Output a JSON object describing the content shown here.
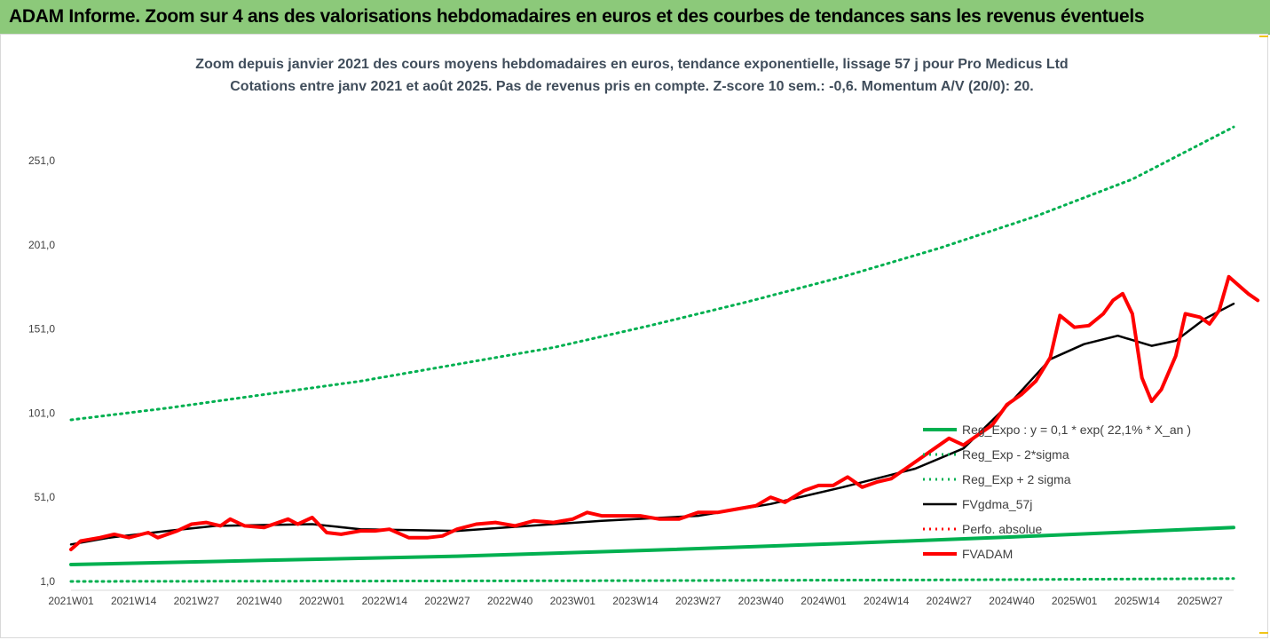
{
  "header": {
    "title": "ADAM Informe. Zoom sur 4 ans des valorisations hebdomadaires en euros et des courbes de tendances sans les revenus éventuels"
  },
  "chart_data": {
    "type": "line",
    "title_lines": [
      "Zoom depuis janvier 2021 des cours moyens hebdomadaires en euros, tendance exponentielle, lissage 57 j pour Pro Medicus Ltd",
      "Cotations entre janv 2021 et août 2025.  Pas de revenus pris en compte. Z-score 10 sem.: -0,6. Momentum A/V (20/0): 20."
    ],
    "xlabel": "",
    "ylabel": "",
    "ylim": [
      1,
      270
    ],
    "y_ticks": [
      "1,0",
      "51,0",
      "101,0",
      "151,0",
      "201,0",
      "251,0"
    ],
    "y_tick_values": [
      1,
      51,
      101,
      151,
      201,
      251
    ],
    "x_ticks": [
      "2021W01",
      "2021W14",
      "2021W27",
      "2021W40",
      "2022W01",
      "2022W14",
      "2022W27",
      "2022W40",
      "2023W01",
      "2023W14",
      "2023W27",
      "2023W40",
      "2024W01",
      "2024W14",
      "2024W27",
      "2024W40",
      "2025W01",
      "2025W14",
      "2025W27"
    ],
    "x_tick_weeks": [
      0,
      13,
      26,
      39,
      52,
      65,
      78,
      91,
      104,
      117,
      130,
      143,
      156,
      169,
      182,
      195,
      208,
      221,
      234
    ],
    "x_max_week": 241,
    "grid": false,
    "legend_position": "bottom-right",
    "series": [
      {
        "name": "Reg_Expo : y = 0,1 * exp( 22,1% *  X_an )",
        "color": "#00b050",
        "style": "solid",
        "points": [
          [
            0,
            11.0
          ],
          [
            40,
            13.5
          ],
          [
            80,
            16.0
          ],
          [
            120,
            19.5
          ],
          [
            160,
            23.5
          ],
          [
            200,
            28.0
          ],
          [
            241,
            33.0
          ]
        ]
      },
      {
        "name": "Reg_Exp - 2*sigma",
        "color": "#00b050",
        "style": "dotted",
        "points": [
          [
            0,
            1.0
          ],
          [
            60,
            1.2
          ],
          [
            120,
            1.5
          ],
          [
            180,
            1.9
          ],
          [
            241,
            2.7
          ]
        ]
      },
      {
        "name": "Reg_Exp + 2 sigma",
        "color": "#00b050",
        "style": "dotted",
        "points": [
          [
            0,
            97.0
          ],
          [
            20,
            104.0
          ],
          [
            40,
            112.0
          ],
          [
            60,
            120.0
          ],
          [
            80,
            130.0
          ],
          [
            100,
            140.0
          ],
          [
            120,
            153.0
          ],
          [
            140,
            167.0
          ],
          [
            160,
            182.0
          ],
          [
            180,
            199.0
          ],
          [
            200,
            218.0
          ],
          [
            220,
            240.0
          ],
          [
            241,
            271.0
          ]
        ]
      },
      {
        "name": "FVgdma_57j",
        "color": "#000000",
        "style": "solid",
        "points": [
          [
            0,
            23.0
          ],
          [
            8,
            27.0
          ],
          [
            20,
            31.0
          ],
          [
            30,
            34.0
          ],
          [
            50,
            35.0
          ],
          [
            60,
            32.0
          ],
          [
            80,
            31.0
          ],
          [
            95,
            34.0
          ],
          [
            110,
            37.0
          ],
          [
            130,
            40.0
          ],
          [
            145,
            47.0
          ],
          [
            160,
            57.0
          ],
          [
            175,
            68.0
          ],
          [
            185,
            80.0
          ],
          [
            195,
            108.0
          ],
          [
            203,
            133.0
          ],
          [
            210,
            142.0
          ],
          [
            217,
            147.0
          ],
          [
            224,
            141.0
          ],
          [
            229,
            144.0
          ],
          [
            235,
            157.0
          ],
          [
            241,
            166.0
          ]
        ]
      },
      {
        "name": "Perfo. absolue",
        "color": "#ff0000",
        "style": "dotted",
        "points": []
      },
      {
        "name": "FVADAM",
        "color": "#ff0000",
        "style": "solid",
        "points": [
          [
            0,
            20.0
          ],
          [
            2,
            25.0
          ],
          [
            6,
            27.0
          ],
          [
            9,
            29.0
          ],
          [
            12,
            27.0
          ],
          [
            16,
            30.0
          ],
          [
            18,
            27.0
          ],
          [
            22,
            31.0
          ],
          [
            25,
            35.0
          ],
          [
            28,
            36.0
          ],
          [
            31,
            34.0
          ],
          [
            33,
            38.0
          ],
          [
            36,
            34.0
          ],
          [
            40,
            33.0
          ],
          [
            45,
            38.0
          ],
          [
            47,
            35.0
          ],
          [
            50,
            39.0
          ],
          [
            53,
            30.0
          ],
          [
            56,
            29.0
          ],
          [
            60,
            31.0
          ],
          [
            63,
            31.0
          ],
          [
            66,
            32.0
          ],
          [
            70,
            27.0
          ],
          [
            74,
            27.0
          ],
          [
            77,
            28.0
          ],
          [
            80,
            32.0
          ],
          [
            84,
            35.0
          ],
          [
            88,
            36.0
          ],
          [
            92,
            34.0
          ],
          [
            96,
            37.0
          ],
          [
            100,
            36.0
          ],
          [
            104,
            38.0
          ],
          [
            107,
            42.0
          ],
          [
            110,
            40.0
          ],
          [
            114,
            40.0
          ],
          [
            118,
            40.0
          ],
          [
            122,
            38.0
          ],
          [
            126,
            38.0
          ],
          [
            130,
            42.0
          ],
          [
            134,
            42.0
          ],
          [
            138,
            44.0
          ],
          [
            142,
            46.0
          ],
          [
            145,
            51.0
          ],
          [
            148,
            48.0
          ],
          [
            152,
            55.0
          ],
          [
            155,
            58.0
          ],
          [
            158,
            58.0
          ],
          [
            161,
            63.0
          ],
          [
            164,
            57.0
          ],
          [
            167,
            60.0
          ],
          [
            170,
            62.0
          ],
          [
            173,
            68.0
          ],
          [
            176,
            74.0
          ],
          [
            179,
            80.0
          ],
          [
            182,
            86.0
          ],
          [
            185,
            82.0
          ],
          [
            188,
            88.0
          ],
          [
            191,
            94.0
          ],
          [
            194,
            106.0
          ],
          [
            197,
            112.0
          ],
          [
            200,
            120.0
          ],
          [
            203,
            134.0
          ],
          [
            205,
            159.0
          ],
          [
            208,
            152.0
          ],
          [
            211,
            153.0
          ],
          [
            214,
            160.0
          ],
          [
            216,
            168.0
          ],
          [
            218,
            172.0
          ],
          [
            220,
            160.0
          ],
          [
            222,
            122.0
          ],
          [
            224,
            108.0
          ],
          [
            226,
            115.0
          ],
          [
            229,
            135.0
          ],
          [
            231,
            160.0
          ],
          [
            234,
            158.0
          ],
          [
            236,
            154.0
          ],
          [
            238,
            162.0
          ],
          [
            240,
            182.0
          ],
          [
            242,
            177.0
          ],
          [
            244,
            172.0
          ],
          [
            246,
            168.0
          ]
        ]
      }
    ]
  }
}
